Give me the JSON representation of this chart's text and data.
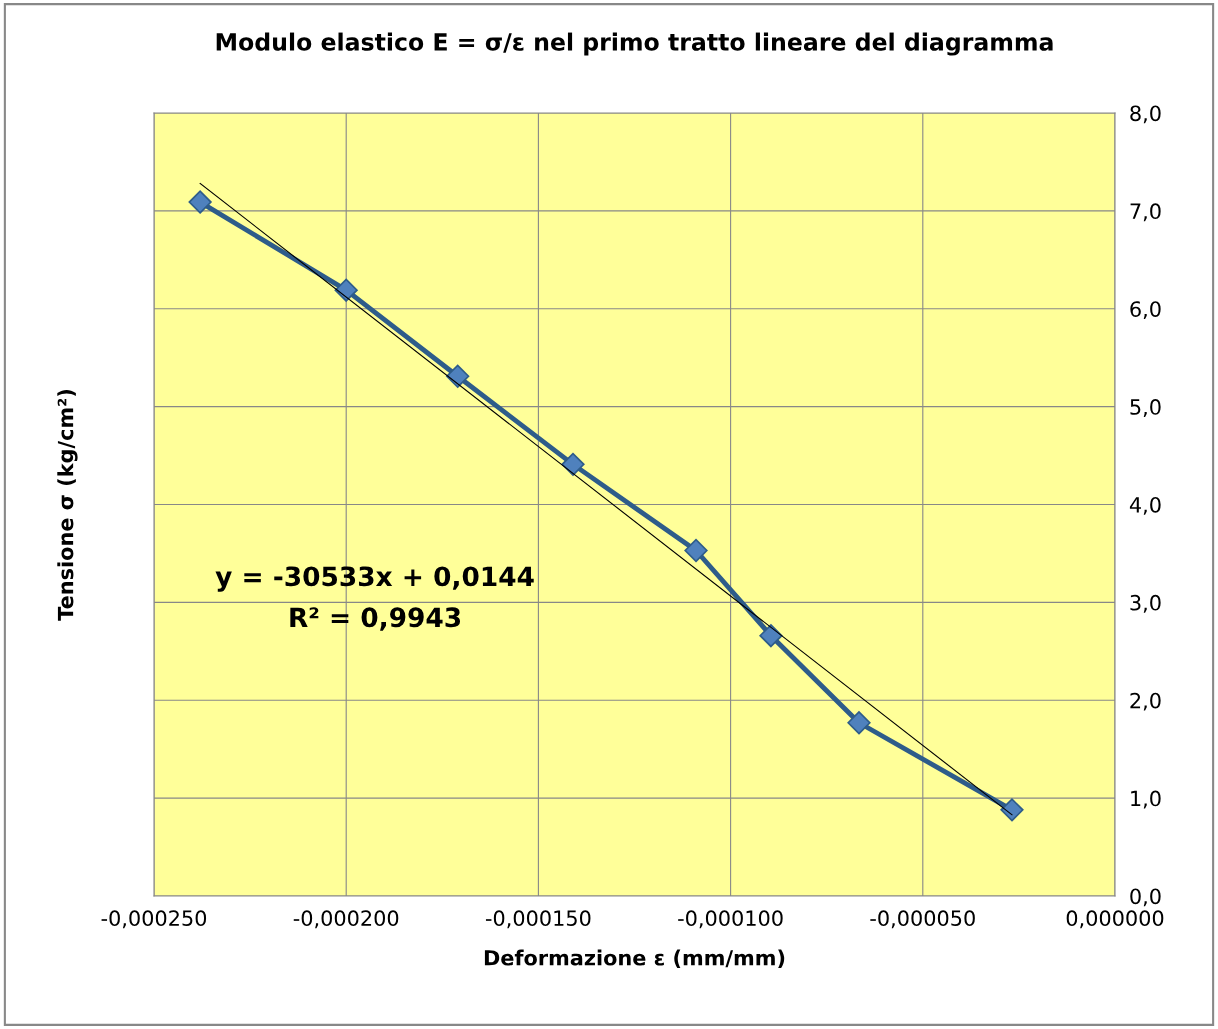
{
  "chart_data": {
    "type": "line",
    "title": "Modulo elastico E = σ/ε nel primo tratto lineare del diagramma",
    "xlabel": "Deformazione ε (mm/mm)",
    "ylabel": "Tensione σ (kg/cm²)",
    "series": [
      {
        "color": "#4f81bd",
        "marker": "diamond",
        "x": [
          -0.000238,
          -0.0002,
          -0.000171,
          -0.000141,
          -0.000109,
          -8.95e-05,
          -6.66e-05,
          -2.68e-05
        ],
        "values": [
          7.09,
          6.19,
          5.31,
          4.41,
          3.53,
          2.66,
          1.77,
          0.88
        ]
      },
      {
        "color": "#000000",
        "marker": "none",
        "x": [
          -0.000238,
          -2.68e-05
        ],
        "values": [
          7.28,
          0.83
        ]
      }
    ],
    "annotations": [
      "y = -30533x + 0,0144",
      "R² = 0,9943"
    ],
    "xlim": [
      -0.00025,
      0.0
    ],
    "xticks": [
      {
        "value": -0.00025,
        "label": "-0,000250"
      },
      {
        "value": -0.0002,
        "label": "-0,000200"
      },
      {
        "value": -0.00015,
        "label": "-0,000150"
      },
      {
        "value": -0.0001,
        "label": "-0,000100"
      },
      {
        "value": -5e-05,
        "label": "-0,000050"
      },
      {
        "value": 0.0,
        "label": "0,000000"
      }
    ],
    "ylim": [
      0,
      8
    ],
    "yticks": [
      {
        "value": 0,
        "label": "0,0"
      },
      {
        "value": 1,
        "label": "1,0"
      },
      {
        "value": 2,
        "label": "2,0"
      },
      {
        "value": 3,
        "label": "3,0"
      },
      {
        "value": 4,
        "label": "4,0"
      },
      {
        "value": 5,
        "label": "5,0"
      },
      {
        "value": 6,
        "label": "6,0"
      },
      {
        "value": 7,
        "label": "7,0"
      },
      {
        "value": 8,
        "label": "8,0"
      }
    ],
    "grid": true
  }
}
